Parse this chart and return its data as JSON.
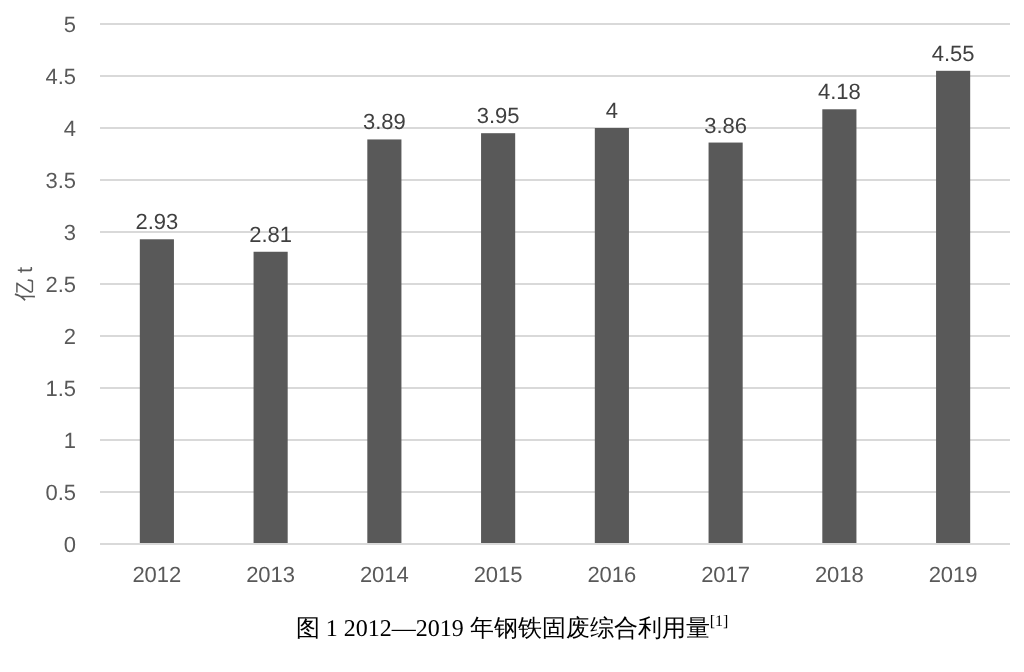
{
  "chart_data": {
    "type": "bar",
    "title": "图 1  2012—2019 年钢铁固废综合利用量$^{[1]}$",
    "ylabel": "亿 t",
    "categories": [
      "2012",
      "2013",
      "2014",
      "2015",
      "2016",
      "2017",
      "2018",
      "2019"
    ],
    "values": [
      2.93,
      2.81,
      3.89,
      3.95,
      4,
      3.86,
      4.18,
      4.55
    ],
    "color": "#595959",
    "ylim": [
      0,
      5
    ],
    "yticks": [
      0,
      0.5,
      1,
      1.5,
      2,
      2.5,
      3,
      3.5,
      4,
      4.5,
      5
    ],
    "grid": "y",
    "data_labels": true
  }
}
